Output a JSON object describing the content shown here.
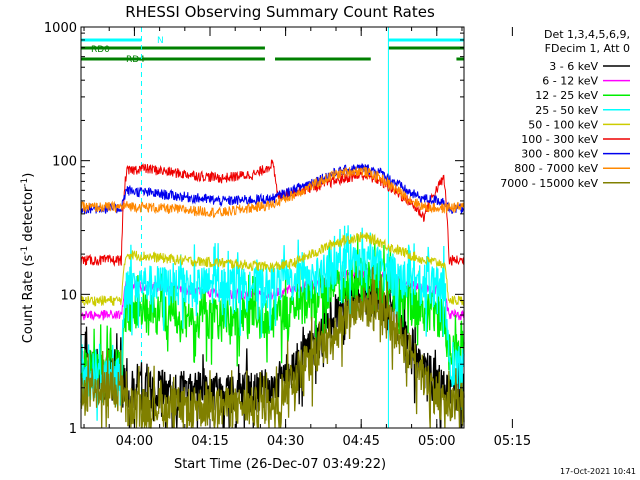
{
  "chart_data": {
    "type": "line",
    "title": "RHESSI Observing Summary Count Rates",
    "xlabel": "Start Time (26-Dec-07 03:49:22)",
    "ylabel_text": "Count Rate (s",
    "ylabel_sup": "-1",
    "ylabel_tail": " detector",
    "ylabel_close": ")",
    "yscale": "log",
    "ylim": [
      1,
      1000
    ],
    "y_ticks": [
      {
        "value": 1,
        "label": "1"
      },
      {
        "value": 10,
        "label": "10"
      },
      {
        "value": 100,
        "label": "100"
      },
      {
        "value": 1000,
        "label": "1000"
      }
    ],
    "xlim_minutes": [
      0,
      76
    ],
    "x_ticks": [
      {
        "minute": 10.6,
        "label": "04:00"
      },
      {
        "minute": 25.6,
        "label": "04:15"
      },
      {
        "minute": 40.6,
        "label": "04:30"
      },
      {
        "minute": 55.6,
        "label": "04:45"
      },
      {
        "minute": 70.6,
        "label": "05:00"
      },
      {
        "minute": 85.6,
        "label": "05:15"
      }
    ],
    "legend_header": [
      "Det 1,3,4,5,6,9,",
      "FDecim 1, Att 0"
    ],
    "legend_position": "right",
    "series": [
      {
        "name": "3 - 6 keV",
        "color": "#000000",
        "x": [
          0,
          8,
          9,
          38,
          42,
          47,
          50,
          53,
          56,
          59,
          62,
          65,
          68,
          72,
          74,
          76
        ],
        "y": [
          3.0,
          3.0,
          2.0,
          2.0,
          3.0,
          4.5,
          7.0,
          9.5,
          11.0,
          10.0,
          7.0,
          4.5,
          3.0,
          2.0,
          2.0,
          2.0
        ]
      },
      {
        "name": "6 - 12 keV",
        "color": "#ff00ff",
        "x": [
          0,
          8,
          9,
          20,
          30,
          38,
          42,
          47,
          50,
          53,
          56,
          59,
          62,
          65,
          68,
          72,
          73,
          76
        ],
        "y": [
          7.0,
          7.0,
          12.0,
          11.0,
          10.0,
          10.0,
          11.0,
          12.0,
          13.0,
          14.0,
          14.5,
          14.0,
          13.0,
          12.0,
          11.0,
          11.0,
          7.0,
          7.0
        ]
      },
      {
        "name": "12 - 25 keV",
        "color": "#00ee00",
        "x": [
          0,
          8,
          9,
          20,
          30,
          38,
          42,
          47,
          50,
          53,
          56,
          59,
          62,
          65,
          68,
          72,
          73,
          76
        ],
        "y": [
          3.0,
          3.0,
          8.0,
          7.0,
          7.0,
          7.0,
          8.0,
          10.0,
          12.0,
          13.5,
          14.0,
          13.0,
          11.0,
          9.0,
          8.0,
          7.0,
          4.0,
          4.0
        ]
      },
      {
        "name": "25 - 50 keV",
        "color": "#00ffff",
        "x": [
          0,
          8,
          9,
          20,
          30,
          38,
          42,
          47,
          50,
          53,
          56,
          59,
          62,
          65,
          68,
          72,
          73,
          76
        ],
        "y": [
          2.5,
          2.5,
          12.5,
          12.0,
          12.0,
          12.0,
          13.0,
          14.0,
          16.0,
          17.0,
          17.5,
          17.0,
          15.0,
          13.0,
          12.0,
          12.0,
          3.0,
          3.0
        ]
      },
      {
        "name": "50 - 100 keV",
        "color": "#cccc00",
        "x": [
          0,
          8,
          9,
          20,
          30,
          38,
          42,
          47,
          50,
          53,
          56,
          59,
          62,
          65,
          68,
          72,
          73,
          76
        ],
        "y": [
          9.0,
          9.0,
          20.0,
          18.0,
          17.0,
          16.0,
          17.0,
          21.0,
          24.0,
          26.0,
          27.0,
          25.0,
          22.0,
          20.0,
          18.0,
          17.0,
          9.0,
          9.0
        ]
      },
      {
        "name": "100 - 300 keV",
        "color": "#ee0000",
        "x": [
          0,
          8,
          9,
          12,
          20,
          28,
          35,
          38,
          39,
          45,
          50,
          53,
          56,
          59,
          62,
          65,
          68,
          72,
          73,
          76
        ],
        "y": [
          18.0,
          18.0,
          83.0,
          88.0,
          80.0,
          74.0,
          80.0,
          95.0,
          55.0,
          62.0,
          70.0,
          75.0,
          78.0,
          72.0,
          60.0,
          50.0,
          38.0,
          74.0,
          18.0,
          18.0
        ]
      },
      {
        "name": "300 - 800 keV",
        "color": "#0000ee",
        "x": [
          0,
          8,
          9,
          20,
          28,
          38,
          42,
          47,
          50,
          53,
          56,
          59,
          62,
          65,
          68,
          72,
          73,
          76
        ],
        "y": [
          44.0,
          44.0,
          60.0,
          54.0,
          50.0,
          52.0,
          60.0,
          72.0,
          80.0,
          86.0,
          88.0,
          83.0,
          70.0,
          58.0,
          52.0,
          50.0,
          44.0,
          44.0
        ]
      },
      {
        "name": "800 - 7000 keV",
        "color": "#ff8800",
        "x": [
          0,
          8,
          9,
          20,
          28,
          38,
          42,
          47,
          50,
          53,
          56,
          59,
          62,
          65,
          68,
          72,
          73,
          76
        ],
        "y": [
          45.0,
          45.0,
          46.0,
          43.0,
          41.0,
          47.0,
          55.0,
          68.0,
          78.0,
          83.0,
          84.0,
          76.0,
          63.0,
          52.0,
          45.0,
          44.0,
          45.0,
          45.0
        ]
      },
      {
        "name": "7000 - 15000 keV",
        "color": "#808000",
        "x": [
          0,
          8,
          9,
          38,
          42,
          47,
          50,
          53,
          56,
          59,
          62,
          65,
          68,
          72,
          76
        ],
        "y": [
          2.0,
          2.0,
          1.5,
          1.5,
          2.5,
          4.0,
          5.5,
          7.5,
          8.5,
          8.0,
          6.0,
          4.0,
          2.5,
          1.5,
          1.5
        ]
      }
    ],
    "status_bars": [
      {
        "label": "N",
        "color": "#00ffff",
        "ranges": [
          [
            0,
            12
          ],
          [
            61,
            76
          ]
        ]
      },
      {
        "label": "RD0",
        "color": "#008000",
        "ranges": [
          [
            0,
            36.5
          ],
          [
            61,
            76
          ]
        ]
      },
      {
        "label": "RD4",
        "color": "#008000",
        "ranges": [
          [
            0,
            36.5
          ],
          [
            38.5,
            57.5
          ],
          [
            74.5,
            76
          ]
        ]
      }
    ],
    "vertical_markers": [
      {
        "minute": 12.0,
        "style": "dashed",
        "color": "#00ffff"
      },
      {
        "minute": 61.0,
        "style": "solid",
        "color": "#00ffff"
      },
      {
        "minute": 76.0,
        "style": "dashed",
        "color": "#00ffff"
      }
    ],
    "timestamp": "17-Oct-2021 10:41"
  }
}
